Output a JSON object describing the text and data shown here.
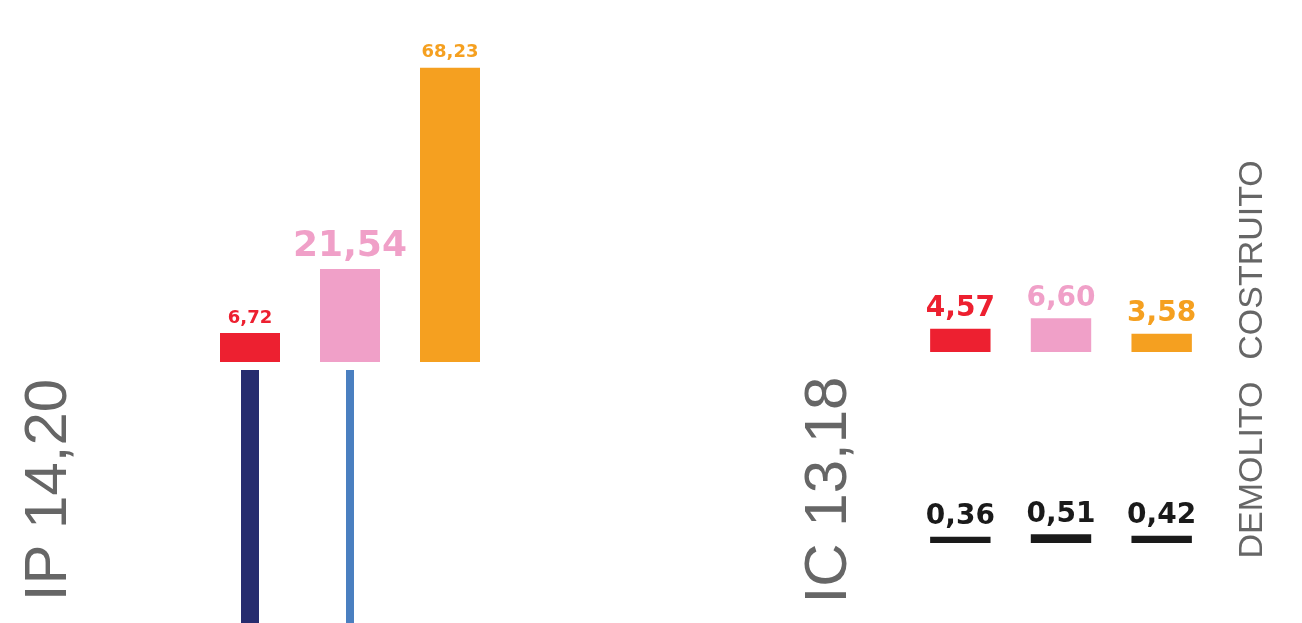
{
  "chart_data": [
    {
      "type": "bar",
      "categories": [
        null,
        null,
        null
      ],
      "colors": [
        "#ed2030",
        "#f0a0c8",
        "#f5a020"
      ],
      "values": [
        6.72,
        21.54,
        68.23
      ],
      "value_labels": [
        "6,72",
        "21,54",
        "68,23"
      ],
      "annotations": [
        "IP 14,20"
      ]
    },
    {
      "type": "bar",
      "categories": [
        null,
        null,
        null
      ],
      "colors": [
        "#ed2030",
        "#f0a0c8",
        "#f5a020"
      ],
      "values": [
        4.57,
        6.6,
        3.58
      ],
      "value_labels": [
        "4,57",
        "6,60",
        "3,58"
      ],
      "ylabel": "COSTRUITO",
      "annotations": [
        "IC 13,18"
      ]
    },
    {
      "type": "bar",
      "categories": [
        null,
        null,
        null
      ],
      "colors": [
        "#1a1a1a",
        "#1a1a1a",
        "#1a1a1a"
      ],
      "values": [
        0.36,
        0.51,
        0.42
      ],
      "value_labels": [
        "0,36",
        "0,51",
        "0,42"
      ],
      "ylabel": "DEMOLITO"
    }
  ]
}
